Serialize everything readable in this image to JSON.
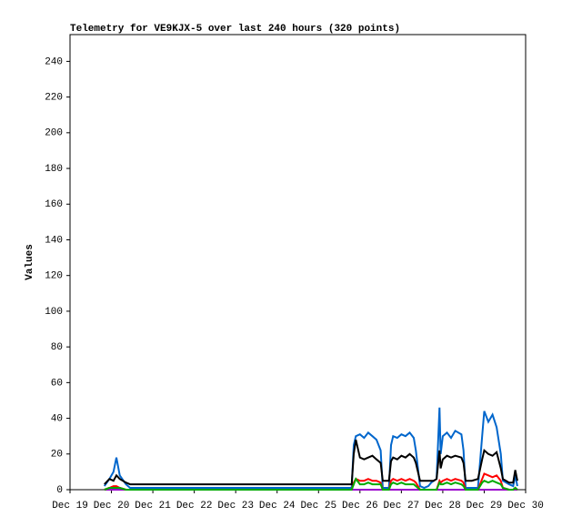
{
  "chart_data": {
    "type": "line",
    "title": "Telemetry for VE9KJX-5 over last 240 hours (320 points)",
    "y_label": "Values",
    "xlim": [
      19,
      30
    ],
    "xticks": [
      {
        "value": 19,
        "label": "Dec 19"
      },
      {
        "value": 20,
        "label": "Dec 20"
      },
      {
        "value": 21,
        "label": "Dec 21"
      },
      {
        "value": 22,
        "label": "Dec 22"
      },
      {
        "value": 23,
        "label": "Dec 23"
      },
      {
        "value": 24,
        "label": "Dec 24"
      },
      {
        "value": 25,
        "label": "Dec 25"
      },
      {
        "value": 26,
        "label": "Dec 26"
      },
      {
        "value": 27,
        "label": "Dec 27"
      },
      {
        "value": 28,
        "label": "Dec 28"
      },
      {
        "value": 29,
        "label": "Dec 29"
      },
      {
        "value": 30,
        "label": "Dec 30"
      }
    ],
    "ylim": [
      0,
      255
    ],
    "yticks": [
      0,
      20,
      40,
      60,
      80,
      100,
      120,
      140,
      160,
      180,
      200,
      220,
      240
    ],
    "x": [
      19.83,
      19.95,
      20.05,
      20.12,
      20.2,
      20.35,
      20.45,
      21,
      22,
      23,
      24,
      25,
      25.8,
      25.85,
      25.9,
      26.0,
      26.1,
      26.2,
      26.3,
      26.4,
      26.5,
      26.55,
      26.7,
      26.75,
      26.8,
      26.9,
      27.0,
      27.1,
      27.2,
      27.3,
      27.35,
      27.45,
      27.55,
      27.65,
      27.72,
      27.78,
      27.85,
      27.92,
      27.95,
      28.0,
      28.1,
      28.2,
      28.3,
      28.45,
      28.5,
      28.55,
      28.7,
      28.85,
      28.95,
      29.0,
      29.1,
      29.2,
      29.3,
      29.4,
      29.45,
      29.6,
      29.7,
      29.75,
      29.8
    ],
    "series": [
      {
        "color": "#9900cc",
        "values": [
          0,
          0,
          0,
          0,
          0,
          0,
          0,
          0,
          0,
          0,
          0,
          0,
          0,
          0,
          0,
          0,
          0,
          0,
          0,
          0,
          0,
          0,
          0,
          0,
          0,
          0,
          0,
          0,
          0,
          0,
          0,
          0,
          0,
          0,
          0,
          0,
          0,
          0,
          0,
          0,
          0,
          0,
          0,
          0,
          0,
          0,
          0,
          0,
          0,
          0,
          0,
          0,
          0,
          0,
          0,
          0,
          0,
          0,
          0
        ]
      },
      {
        "color": "#0066cc",
        "values": [
          2,
          6,
          10,
          18,
          8,
          3,
          1,
          1,
          1,
          1,
          1,
          1,
          1,
          25,
          30,
          31,
          29,
          32,
          30,
          28,
          22,
          1,
          1,
          25,
          30,
          29,
          31,
          30,
          32,
          29,
          22,
          2,
          1,
          2,
          4,
          5,
          6,
          46,
          20,
          30,
          32,
          29,
          33,
          31,
          22,
          1,
          1,
          1,
          30,
          44,
          38,
          42,
          35,
          20,
          5,
          3,
          2,
          8,
          2
        ]
      },
      {
        "color": "#ff0000",
        "values": [
          0,
          1,
          2,
          2,
          1,
          0,
          0,
          0,
          0,
          0,
          0,
          0,
          0,
          4,
          6,
          5,
          5,
          6,
          5,
          5,
          4,
          0,
          0,
          5,
          6,
          5,
          6,
          5,
          6,
          5,
          4,
          0,
          0,
          0,
          0,
          0,
          0,
          5,
          4,
          5,
          6,
          5,
          6,
          5,
          4,
          0,
          0,
          0,
          6,
          9,
          8,
          7,
          8,
          5,
          1,
          0,
          0,
          1,
          0
        ]
      },
      {
        "color": "#00aa00",
        "values": [
          0,
          1,
          1,
          1,
          1,
          0,
          0,
          0,
          0,
          0,
          0,
          0,
          0,
          3,
          6,
          3,
          3,
          4,
          3,
          3,
          3,
          0,
          0,
          3,
          4,
          3,
          4,
          3,
          3,
          3,
          2,
          0,
          0,
          0,
          0,
          0,
          0,
          4,
          3,
          3,
          4,
          3,
          4,
          3,
          2,
          0,
          0,
          0,
          4,
          5,
          4,
          5,
          4,
          3,
          1,
          0,
          0,
          1,
          0
        ]
      },
      {
        "color": "#000000",
        "values": [
          3,
          6,
          5,
          8,
          6,
          4,
          3,
          3,
          3,
          3,
          3,
          3,
          3,
          20,
          28,
          18,
          17,
          18,
          19,
          17,
          15,
          5,
          5,
          16,
          18,
          17,
          19,
          18,
          20,
          18,
          15,
          5,
          5,
          5,
          5,
          5,
          6,
          22,
          12,
          17,
          19,
          18,
          19,
          18,
          15,
          5,
          5,
          6,
          17,
          22,
          20,
          19,
          21,
          12,
          6,
          4,
          4,
          11,
          5
        ]
      }
    ]
  }
}
